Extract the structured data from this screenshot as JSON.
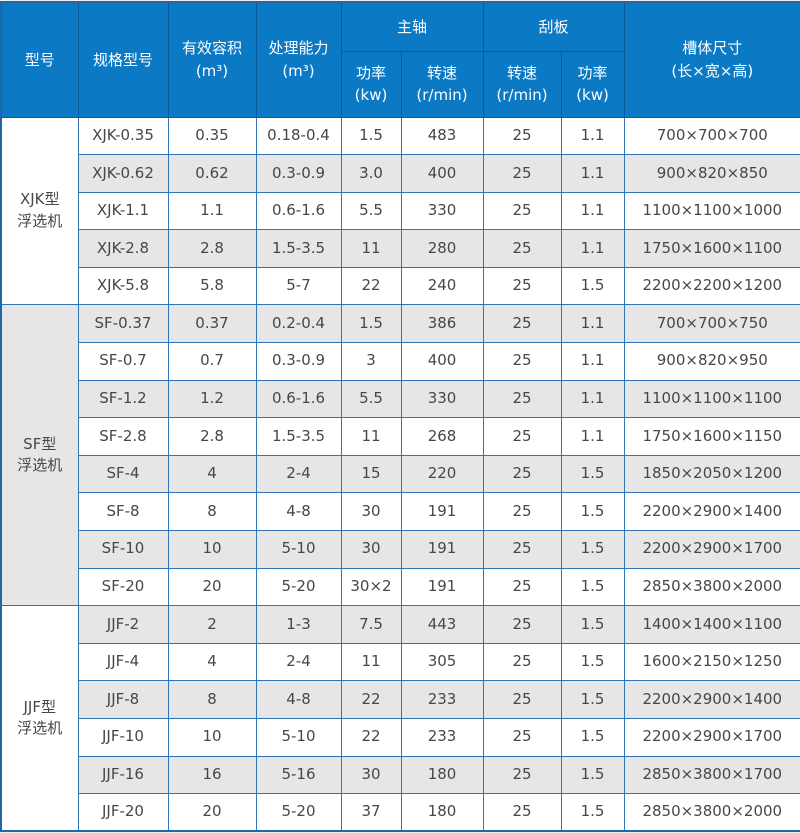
{
  "table": {
    "colors": {
      "header_bg": "#0c79c5",
      "header_divider": "#0a5c9b",
      "header_text": "#ffffff",
      "body_border": "#3075b5",
      "outer_border": "#1f67a6",
      "row_alt_bg": "#e6e6e6",
      "row_bg": "#ffffff",
      "body_text": "#474747",
      "page_bg": "#f1f0ec"
    },
    "header": {
      "model_group": "型号",
      "spec_model": "规格型号",
      "effective_volume": "有效容积\n(m³)",
      "capacity": "处理能力\n(m³)",
      "main_shaft": "主轴",
      "scraper": "刮板",
      "tank_size": "槽体尺寸\n(长×宽×高)",
      "main_power": "功率\n(kw)",
      "main_speed": "转速\n(r/min)",
      "scraper_speed": "转速\n(r/min)",
      "scraper_power": "功率\n(kw)"
    },
    "column_keys": [
      "model",
      "volume",
      "capacity",
      "main_power",
      "main_speed",
      "scraper_speed",
      "scraper_power",
      "tank"
    ],
    "sections": [
      {
        "group": "XJK型\n浮选机",
        "rows": [
          [
            "XJK-0.35",
            "0.35",
            "0.18-0.4",
            "1.5",
            "483",
            "25",
            "1.1",
            "700×700×700"
          ],
          [
            "XJK-0.62",
            "0.62",
            "0.3-0.9",
            "3.0",
            "400",
            "25",
            "1.1",
            "900×820×850"
          ],
          [
            "XJK-1.1",
            "1.1",
            "0.6-1.6",
            "5.5",
            "330",
            "25",
            "1.1",
            "1100×1100×1000"
          ],
          [
            "XJK-2.8",
            "2.8",
            "1.5-3.5",
            "11",
            "280",
            "25",
            "1.1",
            "1750×1600×1100"
          ],
          [
            "XJK-5.8",
            "5.8",
            "5-7",
            "22",
            "240",
            "25",
            "1.5",
            "2200×2200×1200"
          ]
        ]
      },
      {
        "group": "SF型\n浮选机",
        "rows": [
          [
            "SF-0.37",
            "0.37",
            "0.2-0.4",
            "1.5",
            "386",
            "25",
            "1.1",
            "700×700×750"
          ],
          [
            "SF-0.7",
            "0.7",
            "0.3-0.9",
            "3",
            "400",
            "25",
            "1.1",
            "900×820×950"
          ],
          [
            "SF-1.2",
            "1.2",
            "0.6-1.6",
            "5.5",
            "330",
            "25",
            "1.1",
            "1100×1100×1100"
          ],
          [
            "SF-2.8",
            "2.8",
            "1.5-3.5",
            "11",
            "268",
            "25",
            "1.1",
            "1750×1600×1150"
          ],
          [
            "SF-4",
            "4",
            "2-4",
            "15",
            "220",
            "25",
            "1.5",
            "1850×2050×1200"
          ],
          [
            "SF-8",
            "8",
            "4-8",
            "30",
            "191",
            "25",
            "1.5",
            "2200×2900×1400"
          ],
          [
            "SF-10",
            "10",
            "5-10",
            "30",
            "191",
            "25",
            "1.5",
            "2200×2900×1700"
          ],
          [
            "SF-20",
            "20",
            "5-20",
            "30×2",
            "191",
            "25",
            "1.5",
            "2850×3800×2000"
          ]
        ]
      },
      {
        "group": "JJF型\n浮选机",
        "rows": [
          [
            "JJF-2",
            "2",
            "1-3",
            "7.5",
            "443",
            "25",
            "1.5",
            "1400×1400×1100"
          ],
          [
            "JJF-4",
            "4",
            "2-4",
            "11",
            "305",
            "25",
            "1.5",
            "1600×2150×1250"
          ],
          [
            "JJF-8",
            "8",
            "4-8",
            "22",
            "233",
            "25",
            "1.5",
            "2200×2900×1400"
          ],
          [
            "JJF-10",
            "10",
            "5-10",
            "22",
            "233",
            "25",
            "1.5",
            "2200×2900×1700"
          ],
          [
            "JJF-16",
            "16",
            "5-16",
            "30",
            "180",
            "25",
            "1.5",
            "2850×3800×1700"
          ],
          [
            "JJF-20",
            "20",
            "5-20",
            "37",
            "180",
            "25",
            "1.5",
            "2850×3800×2000"
          ]
        ]
      }
    ]
  }
}
